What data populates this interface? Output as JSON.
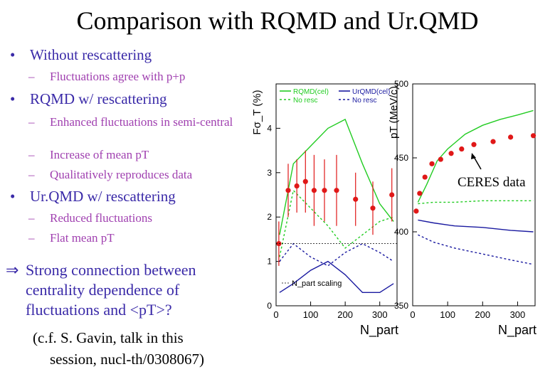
{
  "slide": {
    "title": "Comparison with RQMD and Ur.QMD"
  },
  "bullets": [
    {
      "text": "Without rescattering",
      "subs": [
        "Fluctuations agree with p+p"
      ]
    },
    {
      "text": "RQMD w/ rescattering",
      "subs": [
        "Enhanced fluctuations in semi-central",
        "Increase of mean pT",
        "Qualitatively reproduces data"
      ]
    },
    {
      "text": "Ur.QMD w/ rescattering",
      "subs": [
        "Reduced fluctuations",
        "Flat mean pT"
      ]
    }
  ],
  "conclusion": {
    "arrow": "⇒",
    "line1": "Strong connection between",
    "line2": "centrality dependence of",
    "line3": "fluctuations and <pT>?"
  },
  "reference": {
    "line1": "(c.f. S. Gavin, talk in this",
    "line2": "session, nucl-th/0308067)"
  },
  "ceres_label": "CERES data",
  "colors": {
    "title": "#000000",
    "bullet": "#3a2aa8",
    "sub": "#a040b0",
    "rqmd": "#22cc22",
    "urqmd": "#1a1aa0",
    "data": "#e01818"
  },
  "chart_data": [
    {
      "type": "line",
      "ylabel": "Fσ_T (%)",
      "xlabel": "N_part",
      "xlim": [
        0,
        350
      ],
      "ylim": [
        0,
        5
      ],
      "xticks": [
        "0",
        "100",
        "200",
        "300"
      ],
      "yticks": [
        "0",
        "1",
        "2",
        "3",
        "4"
      ],
      "legend": [
        "RQMD(cel)",
        "No resc",
        "UrQMD(cel)",
        "No resc"
      ],
      "annotation": "N_part scaling",
      "series": [
        {
          "name": "RQMD(cel)",
          "style": "solid",
          "color": "#22cc22",
          "x": [
            10,
            30,
            50,
            100,
            150,
            200,
            250,
            300,
            340
          ],
          "y": [
            1.6,
            2.4,
            3.2,
            3.6,
            4.0,
            4.2,
            3.2,
            2.3,
            1.9
          ]
        },
        {
          "name": "No resc",
          "style": "dashed",
          "color": "#22cc22",
          "x": [
            10,
            50,
            100,
            150,
            200,
            250,
            300,
            340
          ],
          "y": [
            1.1,
            2.6,
            2.2,
            1.8,
            1.3,
            1.6,
            1.9,
            2.0
          ]
        },
        {
          "name": "UrQMD(cel)",
          "style": "solid",
          "color": "#1a1aa0",
          "x": [
            10,
            50,
            100,
            150,
            200,
            250,
            300,
            340
          ],
          "y": [
            0.3,
            0.5,
            0.8,
            1.0,
            0.7,
            0.3,
            0.3,
            0.5
          ]
        },
        {
          "name": "No resc",
          "style": "dashed",
          "color": "#1a1aa0",
          "x": [
            10,
            50,
            100,
            150,
            200,
            250,
            300,
            340
          ],
          "y": [
            1.0,
            1.4,
            1.1,
            0.9,
            1.2,
            1.4,
            1.2,
            1.0
          ]
        },
        {
          "name": "CERES data",
          "style": "points",
          "color": "#e01818",
          "x": [
            8,
            35,
            60,
            85,
            110,
            140,
            175,
            230,
            280,
            335
          ],
          "y": [
            1.4,
            2.6,
            2.7,
            2.8,
            2.6,
            2.6,
            2.6,
            2.4,
            2.2,
            2.5
          ],
          "yerr": [
            0.5,
            0.6,
            0.6,
            0.7,
            0.8,
            0.7,
            0.8,
            0.6,
            0.6,
            0.6
          ]
        }
      ]
    },
    {
      "type": "line",
      "ylabel": "pT (MeV/c)",
      "xlabel": "N_part",
      "xlim": [
        0,
        350
      ],
      "ylim": [
        350,
        500
      ],
      "xticks": [
        "0",
        "100",
        "200",
        "300"
      ],
      "yticks": [
        "350",
        "400",
        "450",
        "500"
      ],
      "series": [
        {
          "name": "RQMD(cel)",
          "style": "solid",
          "color": "#22cc22",
          "x": [
            15,
            40,
            70,
            100,
            150,
            200,
            250,
            300,
            345
          ],
          "y": [
            420,
            432,
            448,
            456,
            466,
            472,
            476,
            479,
            482
          ]
        },
        {
          "name": "No resc",
          "style": "dashed",
          "color": "#22cc22",
          "x": [
            15,
            60,
            120,
            200,
            280,
            345
          ],
          "y": [
            419,
            420,
            420,
            421,
            421,
            421
          ]
        },
        {
          "name": "UrQMD(cel)",
          "style": "solid",
          "color": "#1a1aa0",
          "x": [
            15,
            60,
            120,
            200,
            280,
            345
          ],
          "y": [
            408,
            406,
            404,
            403,
            401,
            400
          ]
        },
        {
          "name": "No resc",
          "style": "dashed",
          "color": "#1a1aa0",
          "x": [
            15,
            60,
            120,
            200,
            280,
            345
          ],
          "y": [
            398,
            393,
            389,
            385,
            381,
            378
          ]
        },
        {
          "name": "CERES data",
          "style": "points",
          "color": "#e01818",
          "x": [
            10,
            20,
            35,
            55,
            80,
            110,
            140,
            175,
            230,
            280,
            345
          ],
          "y": [
            414,
            426,
            437,
            446,
            449,
            453,
            456,
            459,
            461,
            464,
            465
          ]
        }
      ]
    }
  ]
}
